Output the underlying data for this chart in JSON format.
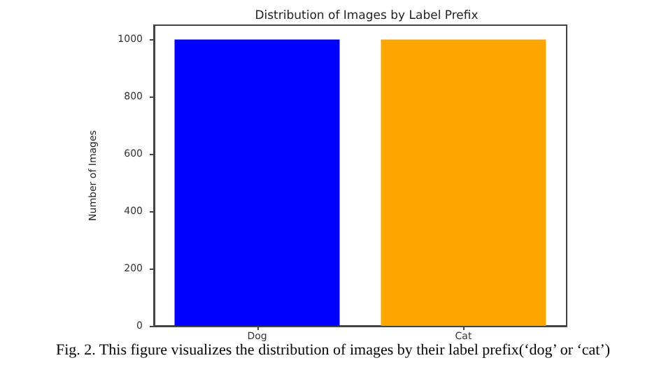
{
  "chart_data": {
    "type": "bar",
    "title": "Distribution of Images by Label Prefix",
    "ylabel": "Number of Images",
    "categories": [
      "Dog",
      "Cat"
    ],
    "values": [
      1000,
      1000
    ],
    "colors": [
      "#0000ff",
      "#ffa500"
    ],
    "ylim": [
      0,
      1050
    ],
    "yticks": [
      0,
      200,
      400,
      600,
      800,
      1000
    ],
    "grid": false,
    "annotations": [
      "Fig. 2. This figure visualizes the distribution of images by their label prefix(‘dog’ or ‘cat’)"
    ]
  }
}
